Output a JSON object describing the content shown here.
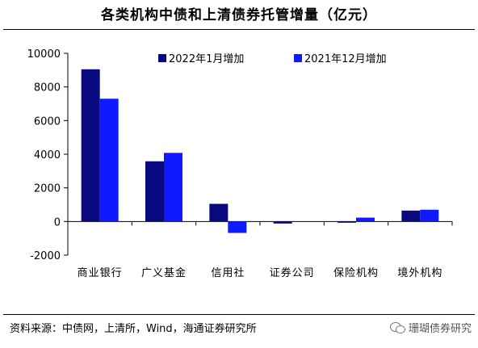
{
  "title": "各类机构中债和上清债券托管增量（亿元）",
  "source": "资料来源：中债网，上清所，Wind，海通证券研究所",
  "watermark": "珊瑚债券研究",
  "colors": {
    "series_a": "#0a0a80",
    "series_b": "#0f1aff",
    "axis": "#000000"
  },
  "chart_data": {
    "type": "bar",
    "categories": [
      "商业银行",
      "广义基金",
      "信用社",
      "证券公司",
      "保险机构",
      "境外机构"
    ],
    "series": [
      {
        "name": "2022年1月增加",
        "values": [
          9050,
          3580,
          1050,
          -120,
          -60,
          650
        ]
      },
      {
        "name": "2021年12月增加",
        "values": [
          7300,
          4080,
          -680,
          0,
          230,
          700
        ]
      }
    ],
    "yticks": [
      -2000,
      0,
      2000,
      4000,
      6000,
      8000,
      10000
    ],
    "ylim": [
      -2000,
      10000
    ],
    "grid": false,
    "legend": "top"
  }
}
